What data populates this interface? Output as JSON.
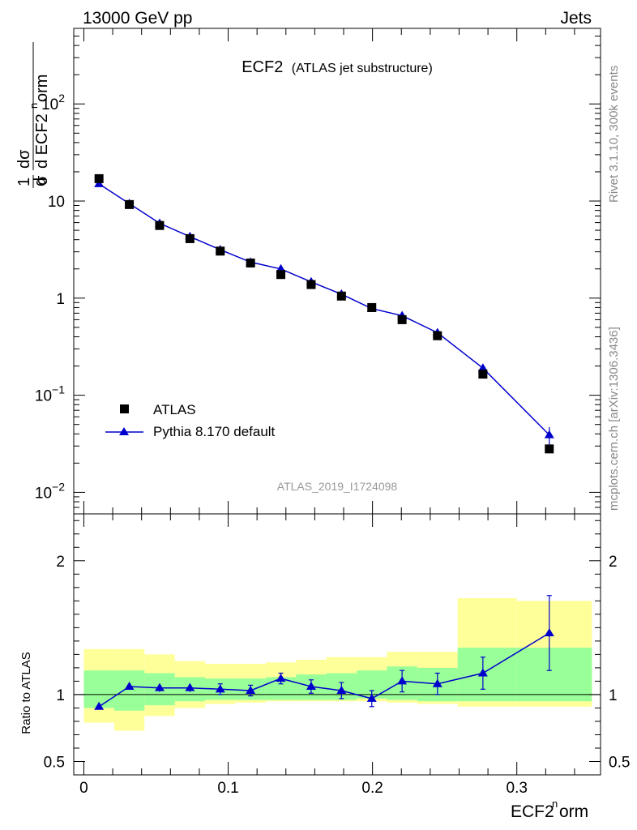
{
  "header": {
    "left": "13000 GeV pp",
    "right": "Jets"
  },
  "title": {
    "main": "ECF2",
    "sub": "(ATLAS jet substructure)"
  },
  "analysis_id": "ATLAS_2019_I1724098",
  "side_labels": {
    "rivet": "Rivet 3.1.10,  300k events",
    "mcplots": "mcplots.cern.ch [arXiv:1306.3436]"
  },
  "axes": {
    "ylabel_top": "1/σ dσ/d ECF2norm",
    "ylabel_bottom": "Ratio to ATLAS",
    "xlabel": "ECF2norm"
  },
  "colors": {
    "mc": "#0000cc",
    "data": "#000000",
    "band_inner": "#99ff99",
    "band_outer": "#ffff99"
  },
  "chart_data": {
    "type": "scatter",
    "x_range": [
      -0.007,
      0.358
    ],
    "main": {
      "yscale": "log",
      "ylim": [
        0.006,
        600
      ],
      "yticks": [
        {
          "v": 0.01,
          "b": "10",
          "e": "−2"
        },
        {
          "v": 0.1,
          "b": "10",
          "e": "−1"
        },
        {
          "v": 1,
          "b": "1",
          "e": ""
        },
        {
          "v": 10,
          "b": "10",
          "e": ""
        },
        {
          "v": 100,
          "b": "10",
          "e": "2"
        }
      ]
    },
    "ratio": {
      "ylim": [
        0.4,
        2.35
      ],
      "yticks": [
        {
          "v": 0.5,
          "label": "0.5"
        },
        {
          "v": 1,
          "label": "1"
        },
        {
          "v": 2,
          "label": "2"
        }
      ]
    },
    "xticks": [
      {
        "v": 0,
        "label": "0"
      },
      {
        "v": 0.1,
        "label": "0.1"
      },
      {
        "v": 0.2,
        "label": "0.2"
      },
      {
        "v": 0.3,
        "label": "0.3"
      }
    ],
    "legend": {
      "placement": "lower-left",
      "entries": [
        "ATLAS",
        "Pythia 8.170 default"
      ]
    },
    "bins": [
      {
        "lo": 0.0,
        "hi": 0.021,
        "x": 0.0105,
        "data": 17.0,
        "mc": 15.0,
        "mc_err": 0.5,
        "ratio": 0.91,
        "ratio_err": 0.01,
        "in": [
          0.9,
          1.18
        ],
        "out": [
          0.79,
          1.34
        ]
      },
      {
        "lo": 0.021,
        "hi": 0.042,
        "x": 0.0315,
        "data": 9.2,
        "mc": 9.4,
        "mc_err": 0.3,
        "ratio": 1.06,
        "ratio_err": 0.02,
        "in": [
          0.88,
          1.18
        ],
        "out": [
          0.73,
          1.34
        ]
      },
      {
        "lo": 0.042,
        "hi": 0.063,
        "x": 0.0525,
        "data": 5.6,
        "mc": 5.9,
        "mc_err": 0.15,
        "ratio": 1.05,
        "ratio_err": 0.03,
        "in": [
          0.92,
          1.16
        ],
        "out": [
          0.84,
          1.3
        ]
      },
      {
        "lo": 0.063,
        "hi": 0.084,
        "x": 0.0735,
        "data": 4.1,
        "mc": 4.3,
        "mc_err": 0.12,
        "ratio": 1.05,
        "ratio_err": 0.03,
        "in": [
          0.95,
          1.13
        ],
        "out": [
          0.9,
          1.25
        ]
      },
      {
        "lo": 0.084,
        "hi": 0.105,
        "x": 0.0945,
        "data": 3.05,
        "mc": 3.15,
        "mc_err": 0.1,
        "ratio": 1.04,
        "ratio_err": 0.04,
        "in": [
          0.96,
          1.12
        ],
        "out": [
          0.93,
          1.23
        ]
      },
      {
        "lo": 0.105,
        "hi": 0.126,
        "x": 0.1155,
        "data": 2.3,
        "mc": 2.35,
        "mc_err": 0.08,
        "ratio": 1.03,
        "ratio_err": 0.04,
        "in": [
          0.96,
          1.12
        ],
        "out": [
          0.94,
          1.23
        ]
      },
      {
        "lo": 0.126,
        "hi": 0.147,
        "x": 0.1365,
        "data": 1.75,
        "mc": 2.0,
        "mc_err": 0.06,
        "ratio": 1.12,
        "ratio_err": 0.04,
        "in": [
          0.96,
          1.13
        ],
        "out": [
          0.95,
          1.24
        ]
      },
      {
        "lo": 0.147,
        "hi": 0.168,
        "x": 0.1575,
        "data": 1.38,
        "mc": 1.47,
        "mc_err": 0.05,
        "ratio": 1.06,
        "ratio_err": 0.05,
        "in": [
          0.96,
          1.15
        ],
        "out": [
          0.95,
          1.26
        ]
      },
      {
        "lo": 0.168,
        "hi": 0.189,
        "x": 0.1785,
        "data": 1.05,
        "mc": 1.1,
        "mc_err": 0.04,
        "ratio": 1.03,
        "ratio_err": 0.06,
        "in": [
          0.96,
          1.16
        ],
        "out": [
          0.95,
          1.28
        ]
      },
      {
        "lo": 0.189,
        "hi": 0.21,
        "x": 0.1995,
        "data": 0.8,
        "mc": 0.78,
        "mc_err": 0.03,
        "ratio": 0.97,
        "ratio_err": 0.06,
        "in": [
          0.97,
          1.18
        ],
        "out": [
          0.95,
          1.28
        ]
      },
      {
        "lo": 0.21,
        "hi": 0.231,
        "x": 0.2205,
        "data": 0.6,
        "mc": 0.66,
        "mc_err": 0.03,
        "ratio": 1.1,
        "ratio_err": 0.08,
        "in": [
          0.96,
          1.21
        ],
        "out": [
          0.94,
          1.32
        ]
      },
      {
        "lo": 0.231,
        "hi": 0.259,
        "x": 0.245,
        "data": 0.41,
        "mc": 0.44,
        "mc_err": 0.025,
        "ratio": 1.08,
        "ratio_err": 0.08,
        "in": [
          0.95,
          1.2
        ],
        "out": [
          0.93,
          1.32
        ]
      },
      {
        "lo": 0.259,
        "hi": 0.3,
        "x": 0.2765,
        "data": 0.165,
        "mc": 0.19,
        "mc_err": 0.02,
        "ratio": 1.16,
        "ratio_err": 0.12,
        "in": [
          0.95,
          1.35
        ],
        "out": [
          0.91,
          1.72
        ]
      },
      {
        "lo": 0.3,
        "hi": 0.352,
        "x": 0.3225,
        "data": 0.028,
        "mc": 0.039,
        "mc_err": 0.008,
        "ratio": 1.46,
        "ratio_err": 0.28,
        "in": [
          0.95,
          1.35
        ],
        "out": [
          0.91,
          1.7
        ]
      }
    ]
  }
}
